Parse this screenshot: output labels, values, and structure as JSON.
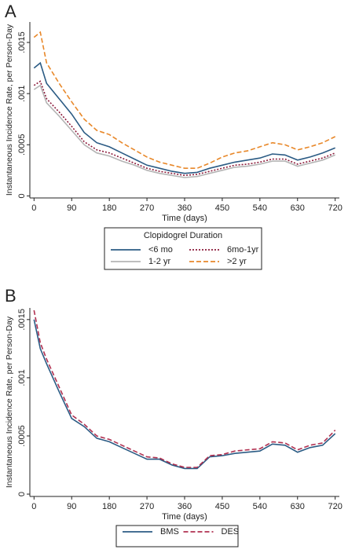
{
  "chart_data": [
    {
      "type": "line",
      "panel": "A",
      "ylabel": "Instantaneous Incidence Rate, per Person-Day",
      "xlabel": "Time (days)",
      "legend_title": "Clopidogrel Duration",
      "legend": "bottom-two-column",
      "xlim": [
        -10,
        730
      ],
      "ylim": [
        -2e-05,
        0.0017
      ],
      "xticks": [
        0,
        90,
        180,
        270,
        360,
        450,
        540,
        630,
        720
      ],
      "yticks": [
        0,
        {
          "value": 0.0005,
          "label": ".0005"
        },
        {
          "value": 0.001,
          "label": ".001"
        },
        {
          "value": 0.0015,
          "label": ".0015"
        }
      ],
      "x": [
        0,
        15,
        30,
        60,
        90,
        120,
        150,
        180,
        210,
        240,
        270,
        300,
        330,
        360,
        390,
        420,
        450,
        480,
        510,
        540,
        570,
        600,
        630,
        660,
        690,
        720
      ],
      "series": [
        {
          "name": "<6 mo",
          "color": "#2b5b84",
          "style": "solid",
          "values": [
            0.00125,
            0.0013,
            0.0011,
            0.00095,
            0.0008,
            0.00062,
            0.00052,
            0.00048,
            0.00042,
            0.00036,
            0.0003,
            0.00027,
            0.00024,
            0.00022,
            0.00023,
            0.00027,
            0.0003,
            0.00033,
            0.00035,
            0.00037,
            0.00041,
            0.0004,
            0.00035,
            0.00038,
            0.00042,
            0.00047
          ]
        },
        {
          "name": "6mo-1yr",
          "color": "#8b1a3a",
          "style": "dotted",
          "values": [
            0.00108,
            0.00112,
            0.00095,
            0.00082,
            0.00068,
            0.00053,
            0.00045,
            0.00042,
            0.00037,
            0.00032,
            0.00027,
            0.00024,
            0.00022,
            0.0002,
            0.00021,
            0.00024,
            0.00027,
            0.0003,
            0.00031,
            0.00033,
            0.00036,
            0.00036,
            0.00031,
            0.00034,
            0.00037,
            0.00042
          ]
        },
        {
          "name": "1-2 yr",
          "color": "#b5b5b5",
          "style": "solid",
          "values": [
            0.00104,
            0.00108,
            0.00091,
            0.00078,
            0.00064,
            0.0005,
            0.00042,
            0.00039,
            0.00034,
            0.0003,
            0.00025,
            0.00022,
            0.0002,
            0.00018,
            0.00019,
            0.00022,
            0.00025,
            0.00028,
            0.00029,
            0.00031,
            0.00034,
            0.00034,
            0.00029,
            0.00032,
            0.00035,
            0.0004
          ]
        },
        {
          "name": ">2 yr",
          "color": "#e8882a",
          "style": "dashed",
          "values": [
            0.00155,
            0.0016,
            0.0013,
            0.0011,
            0.00092,
            0.00075,
            0.00064,
            0.0006,
            0.00052,
            0.00045,
            0.00038,
            0.00033,
            0.0003,
            0.00027,
            0.00027,
            0.00032,
            0.00038,
            0.00042,
            0.00044,
            0.00048,
            0.00052,
            0.0005,
            0.00045,
            0.00048,
            0.00052,
            0.00058
          ]
        }
      ]
    },
    {
      "type": "line",
      "panel": "B",
      "ylabel": "Instantaneous Incidence Rate, per Person-Day",
      "xlabel": "Time (days)",
      "legend": "bottom-one-row",
      "xlim": [
        -10,
        730
      ],
      "ylim": [
        -2e-05,
        0.0016
      ],
      "xticks": [
        0,
        90,
        180,
        270,
        360,
        450,
        540,
        630,
        720
      ],
      "yticks": [
        0,
        {
          "value": 0.0005,
          "label": ".0005"
        },
        {
          "value": 0.001,
          "label": ".001"
        },
        {
          "value": 0.0015,
          "label": ".0015"
        }
      ],
      "x": [
        0,
        15,
        30,
        60,
        90,
        120,
        150,
        180,
        210,
        240,
        270,
        300,
        330,
        360,
        390,
        420,
        450,
        480,
        510,
        540,
        570,
        600,
        630,
        660,
        690,
        720
      ],
      "series": [
        {
          "name": "BMS",
          "color": "#2b5b84",
          "style": "solid",
          "values": [
            0.0015,
            0.00125,
            0.00112,
            0.00088,
            0.00065,
            0.00058,
            0.00048,
            0.00045,
            0.0004,
            0.00035,
            0.0003,
            0.0003,
            0.00025,
            0.00022,
            0.00022,
            0.00032,
            0.00033,
            0.00035,
            0.00036,
            0.00037,
            0.00043,
            0.00042,
            0.00036,
            0.0004,
            0.00042,
            0.00052
          ]
        },
        {
          "name": "DES",
          "color": "#b03050",
          "style": "dashed",
          "values": [
            0.00158,
            0.0013,
            0.00116,
            0.00092,
            0.00068,
            0.0006,
            0.0005,
            0.00047,
            0.00042,
            0.00037,
            0.00032,
            0.00031,
            0.00026,
            0.00023,
            0.00023,
            0.00033,
            0.00034,
            0.00037,
            0.00038,
            0.00039,
            0.00045,
            0.00044,
            0.00038,
            0.00042,
            0.00044,
            0.00055
          ]
        }
      ]
    }
  ]
}
